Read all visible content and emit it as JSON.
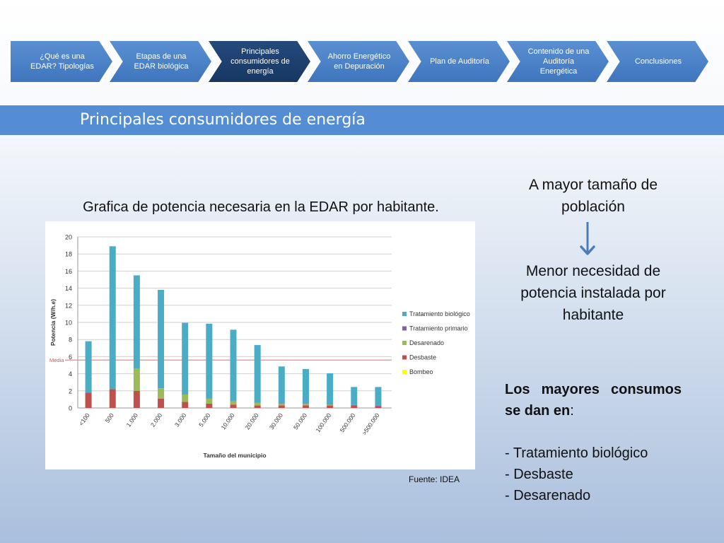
{
  "nav": {
    "steps": [
      {
        "label": "¿Qué es una EDAR? Tipologías",
        "active": false
      },
      {
        "label": "Etapas de una EDAR biológica",
        "active": false
      },
      {
        "label": "Principales consumidores de energía",
        "active": true
      },
      {
        "label": "Ahorro Energético en Depuración",
        "active": false
      },
      {
        "label": "Plan de Auditoría",
        "active": false
      },
      {
        "label": "Contenido de una Auditoría Energética",
        "active": false
      },
      {
        "label": "Conclusiones",
        "active": false
      }
    ]
  },
  "slide": {
    "title": "Principales consumidores de energía",
    "chart_heading": "Grafica de potencia necesaria en la EDAR por habitante.",
    "source": "Fuente: IDEA",
    "right": {
      "line1": "A mayor tamaño de población",
      "line2": "Menor necesidad de potencia instalada por habitante",
      "consumo_heading_bold": "Los mayores consumos se dan en",
      "consumo_heading_colon": ":",
      "items": [
        "- Tratamiento biológico",
        "- Desbaste",
        "- Desarenado"
      ]
    },
    "colors": {
      "band": "#548dd4",
      "arrow": "#4a7ebb",
      "active_step": "#1f3f6e"
    }
  },
  "chart_data": {
    "type": "bar",
    "stacked": true,
    "categories": [
      "<100",
      "500",
      "1.000",
      "2.000",
      "3.000",
      "5.000",
      "10.000",
      "20.000",
      "30.000",
      "50.000",
      "100.000",
      "500.000",
      ">500.000"
    ],
    "series": [
      {
        "name": "Bombeo",
        "color": "#ffff00",
        "values": [
          0,
          0,
          0,
          0,
          0,
          0,
          0,
          0,
          0,
          0,
          0,
          0,
          0
        ]
      },
      {
        "name": "Desbaste",
        "color": "#c0504d",
        "values": [
          1.8,
          2.2,
          2.0,
          1.1,
          0.7,
          0.5,
          0.4,
          0.3,
          0.3,
          0.3,
          0.3,
          0.3,
          0.2
        ]
      },
      {
        "name": "Desarenado",
        "color": "#9bbb59",
        "values": [
          0,
          0,
          2.6,
          1.2,
          0.9,
          0.6,
          0.4,
          0.3,
          0.2,
          0.2,
          0.1,
          0,
          0
        ]
      },
      {
        "name": "Tratamiento primario",
        "color": "#8064a2",
        "values": [
          0,
          0,
          0,
          0,
          0.05,
          0.05,
          0.05,
          0.05,
          0.05,
          0.05,
          0.05,
          0.05,
          0.05
        ]
      },
      {
        "name": "Tratamiento biológico",
        "color": "#4bacc6",
        "values": [
          6.0,
          16.7,
          10.9,
          11.5,
          8.3,
          8.7,
          8.3,
          6.7,
          4.3,
          4.0,
          3.6,
          2.1,
          2.2
        ]
      }
    ],
    "legend_order": [
      "Tratamiento biológico",
      "Tratamiento primario",
      "Desarenado",
      "Desbaste",
      "Bombeo"
    ],
    "media": {
      "label": "Media",
      "value": 5.6,
      "color": "#ff7f7f"
    },
    "xlabel": "Tamaño del municipio",
    "ylabel": "Potencia (W/h.e)",
    "ylim": [
      0,
      20
    ],
    "yticks": [
      "0",
      "2",
      "4",
      "6",
      "8",
      "10",
      "12",
      "14",
      "16",
      "18",
      "20"
    ],
    "grid": true,
    "legend_position": "right"
  }
}
